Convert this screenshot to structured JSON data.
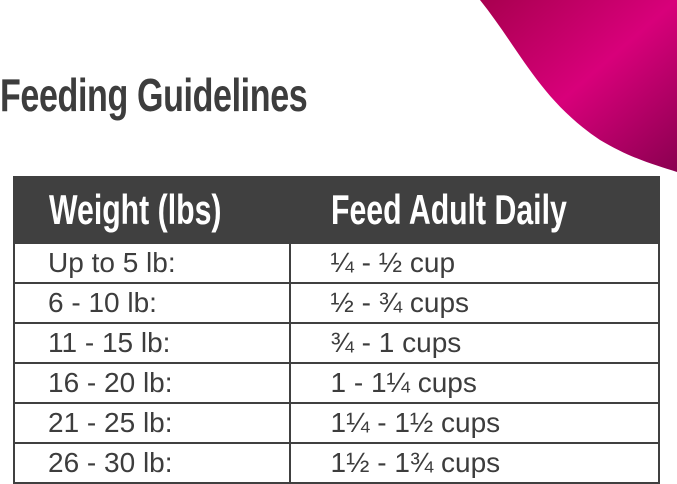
{
  "title": "Feeding Guidelines",
  "accent_color": "#d1006b",
  "table": {
    "headers": [
      "Weight (lbs)",
      "Feed Adult Daily"
    ],
    "rows": [
      [
        "Up to 5 lb:",
        "¼ - ½ cup"
      ],
      [
        "6 - 10 lb:",
        "½ - ¾ cups"
      ],
      [
        "11 - 15 lb:",
        "¾ - 1 cups"
      ],
      [
        "16 - 20 lb:",
        "1 - 1¼ cups"
      ],
      [
        "21 - 25 lb:",
        "1¼ - 1½ cups"
      ],
      [
        "26 - 30 lb:",
        "1½ - 1¾ cups"
      ]
    ]
  }
}
